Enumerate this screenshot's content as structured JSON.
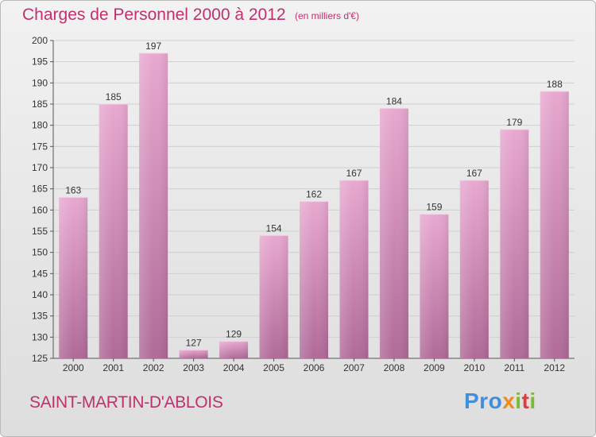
{
  "header": {
    "title": "Charges de Personnel 2000 à 2012",
    "unit": "(en milliers d'€)"
  },
  "footer": {
    "commune": "SAINT-MARTIN-D'ABLOIS",
    "logo": [
      "Pro",
      "x",
      "i",
      "t",
      "i"
    ]
  },
  "colors": {
    "title": "#c0306e",
    "bar_top": "#e8a8d0",
    "bar_bottom": "#b06a98",
    "grid": "#cfcfcf",
    "axis": "#555555",
    "background": "#e8e8e8"
  },
  "chart_data": {
    "type": "bar",
    "title": "Charges de Personnel 2000 à 2012",
    "subtitle": "(en milliers d'€)",
    "xlabel": "",
    "ylabel": "",
    "categories": [
      "2000",
      "2001",
      "2002",
      "2003",
      "2004",
      "2005",
      "2006",
      "2007",
      "2008",
      "2009",
      "2010",
      "2011",
      "2012"
    ],
    "values": [
      163,
      185,
      197,
      127,
      129,
      154,
      162,
      167,
      184,
      159,
      167,
      179,
      188
    ],
    "ylim": [
      125,
      200
    ],
    "yticks": [
      125,
      130,
      135,
      140,
      145,
      150,
      155,
      160,
      165,
      170,
      175,
      180,
      185,
      190,
      195,
      200
    ],
    "grid": true,
    "legend": "none"
  }
}
